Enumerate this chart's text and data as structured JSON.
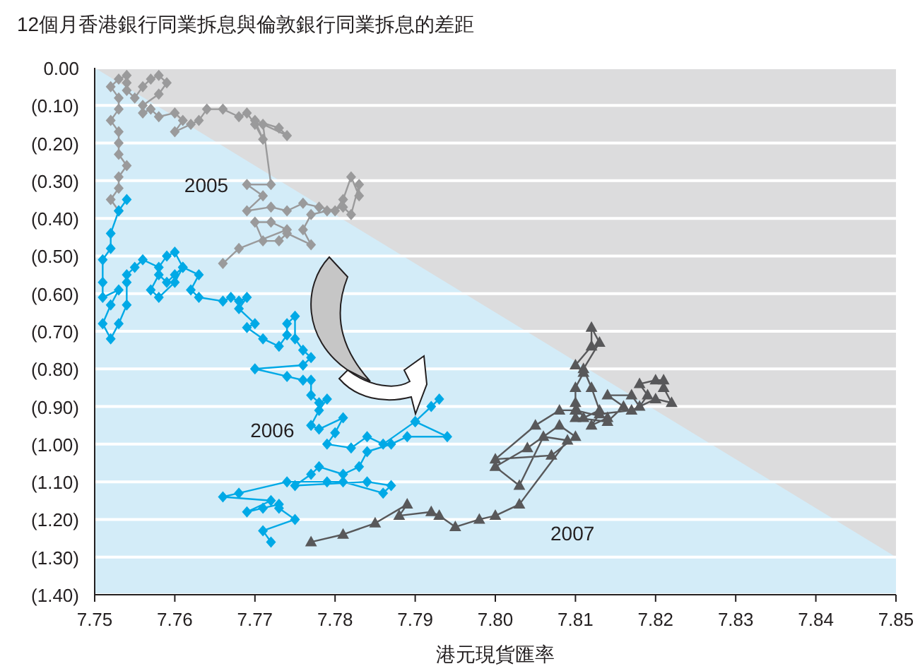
{
  "chart_data": {
    "type": "line",
    "ylabel": "12個月香港銀行同業拆息與倫敦銀行同業拆息的差距",
    "xlabel": "港元現貨匯率",
    "xlim": [
      7.75,
      7.85
    ],
    "xticks": [
      7.75,
      7.76,
      7.77,
      7.78,
      7.79,
      {
        "value": 7.8,
        "label": "7.80"
      },
      7.81,
      7.82,
      7.83,
      7.84,
      7.85
    ],
    "ylim": [
      -1.4,
      0
    ],
    "yticks": [
      {
        "value": 0,
        "label": "0.00"
      },
      {
        "value": -0.1,
        "label": "(0.10)"
      },
      {
        "value": -0.2,
        "label": "(0.20)"
      },
      {
        "value": -0.3,
        "label": "(0.30)"
      },
      {
        "value": -0.4,
        "label": "(0.40)"
      },
      {
        "value": -0.5,
        "label": "(0.50)"
      },
      {
        "value": -0.6,
        "label": "(0.60)"
      },
      {
        "value": -0.7,
        "label": "(0.70)"
      },
      {
        "value": -0.8,
        "label": "(0.80)"
      },
      {
        "value": -0.9,
        "label": "(0.90)"
      },
      {
        "value": -1.0,
        "label": "(1.00)"
      },
      {
        "value": -1.1,
        "label": "(1.10)"
      },
      {
        "value": -1.2,
        "label": "(1.20)"
      },
      {
        "value": -1.3,
        "label": "(1.30)"
      },
      {
        "value": -1.4,
        "label": "(1.40)"
      }
    ],
    "grid": "y",
    "legend": false,
    "series": [
      {
        "type": "area",
        "color": "#dcdcdd",
        "x": [
          7.75,
          7.85
        ],
        "values": [
          0,
          -1.3
        ]
      },
      {
        "type": "line",
        "name": "2005",
        "color": "#9a9a9b",
        "marker": "diamond",
        "x": [
          7.753,
          7.752,
          7.753,
          7.753,
          7.754,
          7.753,
          7.753,
          7.753,
          7.752,
          7.753,
          7.753,
          7.752,
          7.753,
          7.754,
          7.754,
          7.754,
          7.755,
          7.756,
          7.757,
          7.758,
          7.759,
          7.758,
          7.756,
          7.756,
          7.757,
          7.758,
          7.76,
          7.761,
          7.76,
          7.762,
          7.763,
          7.764,
          7.766,
          7.768,
          7.769,
          7.77,
          7.771,
          7.77,
          7.773,
          7.774,
          7.771,
          7.772,
          7.769,
          7.771,
          7.769,
          7.772,
          7.774,
          7.776,
          7.778,
          7.78,
          7.781,
          7.782,
          7.783,
          7.783,
          7.782,
          7.781,
          7.779,
          7.777,
          7.776,
          7.777,
          7.774,
          7.773,
          7.771,
          7.77,
          7.772,
          7.774,
          7.768,
          7.766
        ],
        "values": [
          -0.38,
          -0.35,
          -0.32,
          -0.29,
          -0.26,
          -0.23,
          -0.2,
          -0.17,
          -0.14,
          -0.11,
          -0.08,
          -0.05,
          -0.03,
          -0.02,
          -0.04,
          -0.06,
          -0.08,
          -0.05,
          -0.03,
          -0.02,
          -0.04,
          -0.07,
          -0.1,
          -0.12,
          -0.11,
          -0.13,
          -0.12,
          -0.14,
          -0.17,
          -0.15,
          -0.14,
          -0.11,
          -0.11,
          -0.13,
          -0.12,
          -0.15,
          -0.19,
          -0.14,
          -0.16,
          -0.18,
          -0.15,
          -0.31,
          -0.31,
          -0.34,
          -0.38,
          -0.37,
          -0.38,
          -0.36,
          -0.37,
          -0.38,
          -0.35,
          -0.29,
          -0.34,
          -0.31,
          -0.39,
          -0.37,
          -0.38,
          -0.39,
          -0.43,
          -0.47,
          -0.44,
          -0.46,
          -0.46,
          -0.41,
          -0.41,
          -0.43,
          -0.48,
          -0.52
        ]
      },
      {
        "type": "line",
        "name": "2006",
        "color": "#00a9e6",
        "marker": "diamond",
        "x": [
          7.754,
          7.753,
          7.752,
          7.752,
          7.751,
          7.751,
          7.751,
          7.753,
          7.752,
          7.751,
          7.752,
          7.753,
          7.754,
          7.754,
          7.754,
          7.755,
          7.756,
          7.758,
          7.759,
          7.76,
          7.761,
          7.76,
          7.759,
          7.758,
          7.757,
          7.758,
          7.76,
          7.761,
          7.763,
          7.762,
          7.763,
          7.766,
          7.767,
          7.768,
          7.769,
          7.768,
          7.77,
          7.769,
          7.771,
          7.773,
          7.774,
          7.774,
          7.775,
          7.775,
          7.776,
          7.777,
          7.776,
          7.77,
          7.774,
          7.776,
          7.777,
          7.777,
          7.778,
          7.779,
          7.778,
          7.777,
          7.778,
          7.781,
          7.78,
          7.779,
          7.782,
          7.784,
          7.786,
          7.79,
          7.792,
          7.793,
          7.79,
          7.794,
          7.789,
          7.787,
          7.784,
          7.783,
          7.781,
          7.778,
          7.777,
          7.775,
          7.784,
          7.787,
          7.786,
          7.781,
          7.779,
          7.774,
          7.768,
          7.766,
          7.772,
          7.769,
          7.771,
          7.773,
          7.773,
          7.775,
          7.771,
          7.772
        ],
        "values": [
          -0.35,
          -0.38,
          -0.44,
          -0.48,
          -0.51,
          -0.57,
          -0.61,
          -0.59,
          -0.63,
          -0.68,
          -0.72,
          -0.68,
          -0.63,
          -0.57,
          -0.55,
          -0.53,
          -0.51,
          -0.53,
          -0.5,
          -0.49,
          -0.53,
          -0.55,
          -0.57,
          -0.55,
          -0.59,
          -0.61,
          -0.57,
          -0.53,
          -0.55,
          -0.59,
          -0.61,
          -0.62,
          -0.61,
          -0.62,
          -0.61,
          -0.64,
          -0.68,
          -0.69,
          -0.72,
          -0.74,
          -0.71,
          -0.68,
          -0.66,
          -0.72,
          -0.75,
          -0.77,
          -0.79,
          -0.8,
          -0.82,
          -0.83,
          -0.83,
          -0.87,
          -0.89,
          -0.88,
          -0.91,
          -0.95,
          -0.96,
          -0.93,
          -0.97,
          -1.0,
          -1.01,
          -0.98,
          -1.0,
          -0.94,
          -0.9,
          -0.88,
          -0.94,
          -0.98,
          -0.98,
          -1.0,
          -1.02,
          -1.06,
          -1.08,
          -1.06,
          -1.08,
          -1.11,
          -1.1,
          -1.11,
          -1.13,
          -1.1,
          -1.1,
          -1.1,
          -1.13,
          -1.14,
          -1.15,
          -1.18,
          -1.17,
          -1.16,
          -1.17,
          -1.2,
          -1.23,
          -1.26
        ]
      },
      {
        "type": "line",
        "name": "2007",
        "color": "#58585a",
        "marker": "triangle",
        "x": [
          7.777,
          7.781,
          7.785,
          7.789,
          7.788,
          7.792,
          7.793,
          7.795,
          7.798,
          7.8,
          7.803,
          7.809,
          7.806,
          7.803,
          7.8,
          7.804,
          7.808,
          7.81,
          7.807,
          7.8,
          7.805,
          7.808,
          7.81,
          7.81,
          7.811,
          7.81,
          7.812,
          7.812,
          7.813,
          7.811,
          7.812,
          7.813,
          7.811,
          7.81,
          7.81,
          7.814,
          7.816,
          7.814,
          7.817,
          7.818,
          7.819,
          7.818,
          7.82,
          7.821,
          7.821,
          7.822,
          7.82,
          7.817,
          7.813,
          7.812,
          7.814,
          7.81
        ],
        "values": [
          -1.26,
          -1.24,
          -1.21,
          -1.16,
          -1.19,
          -1.18,
          -1.19,
          -1.22,
          -1.2,
          -1.19,
          -1.16,
          -0.99,
          -0.98,
          -1.11,
          -1.06,
          -1.01,
          -0.95,
          -0.98,
          -1.03,
          -1.04,
          -0.95,
          -0.91,
          -0.91,
          -0.85,
          -0.81,
          -0.79,
          -0.74,
          -0.69,
          -0.73,
          -0.8,
          -0.85,
          -0.91,
          -0.93,
          -0.89,
          -0.93,
          -0.94,
          -0.9,
          -0.87,
          -0.87,
          -0.9,
          -0.87,
          -0.84,
          -0.83,
          -0.83,
          -0.85,
          -0.89,
          -0.88,
          -0.91,
          -0.92,
          -0.95,
          -0.93,
          -0.91
        ]
      }
    ]
  }
}
